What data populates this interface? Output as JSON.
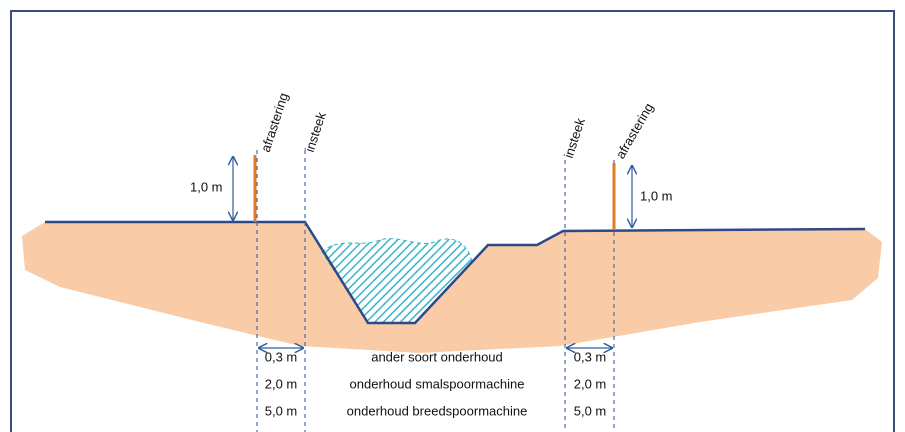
{
  "left": {
    "fence": "afrastering",
    "edge": "insteek",
    "height": "1,0 m",
    "distances": [
      "0,3 m",
      "2,0 m",
      "5,0 m"
    ]
  },
  "right": {
    "fence": "afrastering",
    "edge": "insteek",
    "height": "1,0 m",
    "distances": [
      "0,3 m",
      "2,0 m",
      "5,0 m"
    ]
  },
  "maintenance": [
    "ander soort onderhoud",
    "onderhoud smalspoormachine",
    "onderhoud breedspoormachine"
  ]
}
